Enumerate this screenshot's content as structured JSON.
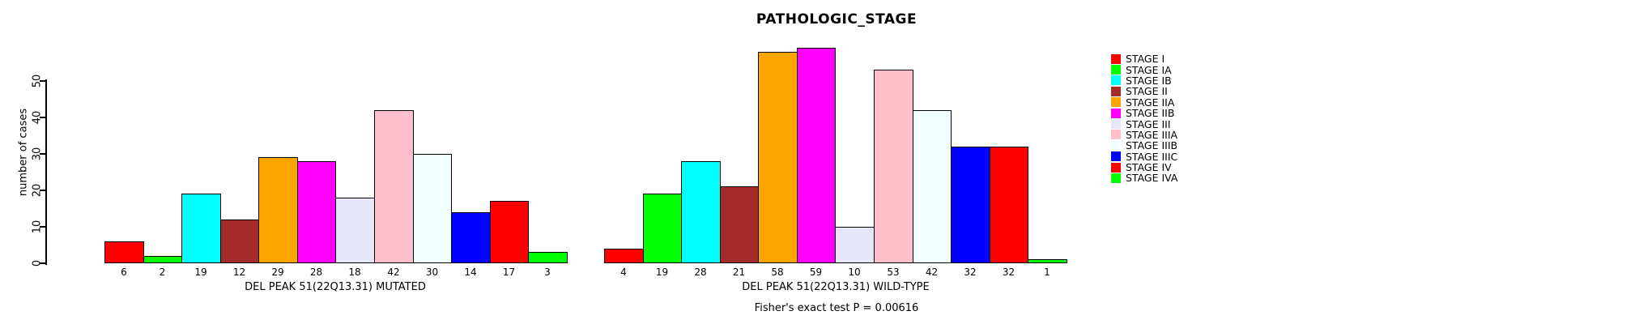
{
  "chart_data": {
    "type": "bar",
    "title": "PATHOLOGIC_STAGE",
    "ylabel": "number of cases",
    "yticks": [
      0,
      10,
      20,
      30,
      40,
      50
    ],
    "ylim": [
      0,
      59
    ],
    "grid": false,
    "legend_position": "right",
    "categories": [
      "STAGE I",
      "STAGE IA",
      "STAGE IB",
      "STAGE II",
      "STAGE IIA",
      "STAGE IIB",
      "STAGE III",
      "STAGE IIIA",
      "STAGE IIIB",
      "STAGE IIIC",
      "STAGE IV",
      "STAGE IVA"
    ],
    "colors": [
      "#FF0000",
      "#00FF00",
      "#00FFFF",
      "#A52A2A",
      "#FFA500",
      "#FF00FF",
      "#E6E6FA",
      "#FFC0CB",
      "#F0FFFF",
      "#0000FF",
      "#FF0000",
      "#00FF00"
    ],
    "groups": [
      {
        "xlabel": "DEL PEAK 51(22Q13.31) MUTATED",
        "values": [
          6,
          2,
          19,
          12,
          29,
          28,
          18,
          42,
          30,
          14,
          17,
          3
        ]
      },
      {
        "xlabel": "DEL PEAK 51(22Q13.31) WILD-TYPE",
        "values": [
          4,
          19,
          28,
          21,
          58,
          59,
          10,
          53,
          42,
          32,
          32,
          1
        ]
      }
    ],
    "annotation": "Fisher's exact test P = 0.00616"
  }
}
